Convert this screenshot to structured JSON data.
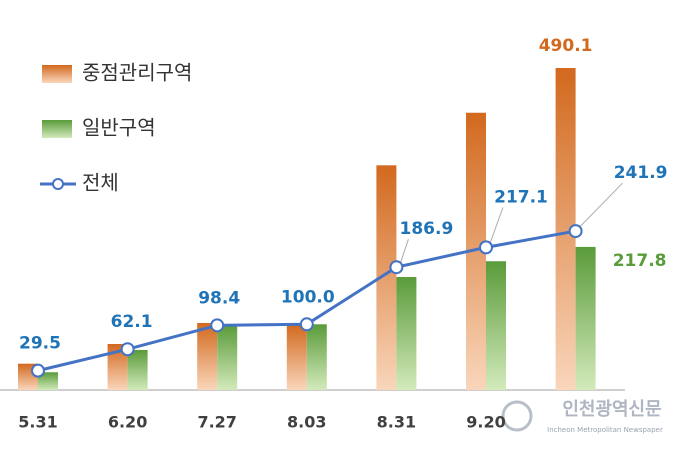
{
  "chart_data": {
    "type": "bar-line",
    "categories": [
      "5.31",
      "6.20",
      "7.27",
      "8.03",
      "8.31",
      "9.20",
      null
    ],
    "series": [
      {
        "name": "중점관리구역",
        "type": "bar",
        "color": "#d2691e",
        "values": [
          40,
          70,
          102,
          100,
          342,
          422,
          490.1
        ],
        "label_last": true
      },
      {
        "name": "일반구역",
        "type": "bar",
        "color": "#5a9b3a",
        "values": [
          27,
          61,
          99,
          100,
          172,
          196,
          217.8
        ],
        "label_last": true
      },
      {
        "name": "전체",
        "type": "line",
        "color": "#4472c4",
        "label_color": "#1f73b7",
        "values": [
          29.5,
          62.1,
          98.4,
          100,
          186.9,
          217.1,
          241.9
        ],
        "value_labels": [
          "29.5",
          "62.1",
          "98.4",
          "100.0",
          "186.9",
          "217.1",
          "241.9"
        ]
      }
    ],
    "ylim": [
      0,
      490.1
    ],
    "watermark": "인천광역신문",
    "watermark_sub": "Incheon Metropolitan Newspaper"
  }
}
